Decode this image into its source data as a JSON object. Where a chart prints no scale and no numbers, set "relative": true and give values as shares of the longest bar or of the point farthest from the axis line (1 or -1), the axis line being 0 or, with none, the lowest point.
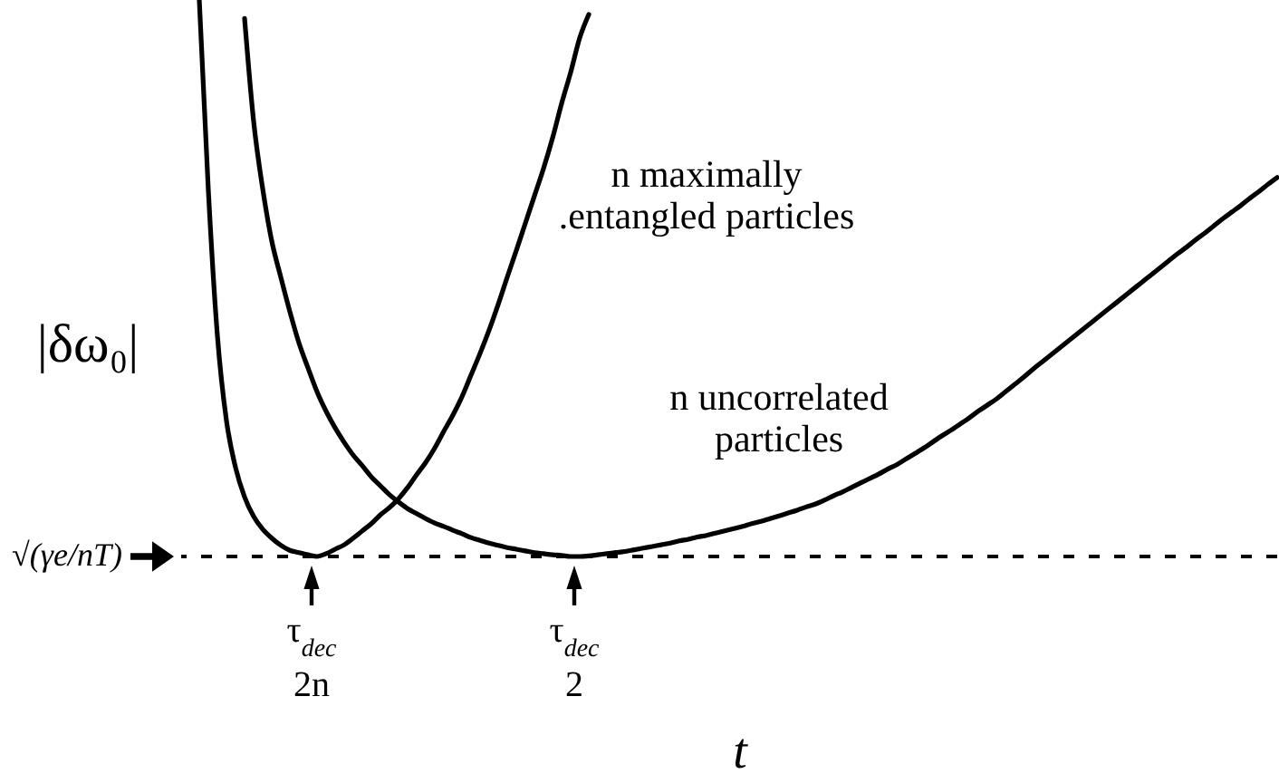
{
  "chart_data": {
    "type": "line",
    "relative": true,
    "xlabel": "t",
    "ylabel": "|δω₀|",
    "categories": [
      null,
      null,
      null,
      null,
      null,
      null,
      null,
      null,
      null,
      null,
      null,
      null,
      null,
      null,
      null,
      null,
      null,
      null,
      null,
      null,
      null,
      null,
      null,
      null,
      null,
      null,
      null,
      null,
      null,
      null,
      null,
      null,
      null,
      null,
      null,
      null,
      null,
      null,
      null,
      null,
      null,
      null,
      null,
      null,
      null,
      null,
      null,
      null,
      null,
      null,
      null,
      null,
      null,
      null,
      null,
      null,
      null,
      null,
      null,
      null,
      null,
      null,
      null,
      null,
      null,
      null,
      null,
      null,
      null,
      null,
      null,
      null,
      null,
      null,
      null,
      null,
      null,
      null,
      null,
      null,
      null,
      null,
      null,
      null,
      null,
      null,
      null,
      null,
      null,
      null,
      null,
      null,
      null,
      null,
      null,
      null,
      null,
      null,
      null,
      null,
      null,
      null,
      null,
      null,
      null,
      null,
      null,
      null,
      null,
      null,
      null,
      null,
      null,
      null,
      null,
      null,
      null,
      null,
      null,
      null,
      null,
      null
    ],
    "series": [
      {
        "name": "n maximally .entangled particles",
        "color": "#000000",
        "values": [
          null,
          null,
          1,
          0.658,
          0.397,
          0.244,
          0.16,
          0.107,
          0.072,
          0.049,
          0.033,
          0.02,
          0.011,
          0.007,
          0.003,
          0,
          0.005,
          0.013,
          0.021,
          0.033,
          0.046,
          0.059,
          0.075,
          0.088,
          0.104,
          0.124,
          0.147,
          0.169,
          0.195,
          0.225,
          0.254,
          0.287,
          0.326,
          0.365,
          0.407,
          0.453,
          0.502,
          0.55,
          0.599,
          0.648,
          0.697,
          0.752,
          0.814,
          0.87,
          0.932,
          0.974,
          null,
          null,
          null,
          null,
          null,
          null,
          null,
          null,
          null,
          null,
          null,
          null,
          null,
          null,
          null,
          null,
          null,
          null,
          null,
          null,
          null,
          null,
          null,
          null,
          null,
          null,
          null,
          null,
          null,
          null,
          null,
          null,
          null,
          null,
          null,
          null,
          null,
          null,
          null,
          null,
          null,
          null,
          null,
          null,
          null,
          null,
          null,
          null,
          null,
          null,
          null,
          null,
          null,
          null,
          null,
          null,
          null,
          null,
          null,
          null,
          null,
          null,
          null,
          null,
          null,
          null,
          null,
          null,
          null,
          null,
          null,
          null,
          null,
          null,
          null,
          null
        ]
      },
      {
        "name": "n uncorrelated particles",
        "color": "#000000",
        "values": [
          null,
          null,
          null,
          null,
          null,
          null,
          null,
          0.967,
          0.782,
          0.661,
          0.567,
          0.502,
          0.44,
          0.384,
          0.339,
          0.296,
          0.261,
          0.231,
          0.205,
          0.182,
          0.163,
          0.143,
          0.127,
          0.111,
          0.098,
          0.086,
          0.077,
          0.068,
          0.06,
          0.054,
          0.047,
          0.041,
          0.034,
          0.029,
          0.024,
          0.02,
          0.016,
          0.013,
          0.01,
          0.007,
          0.005,
          0.003,
          0.002,
          0,
          0,
          0.001,
          0.003,
          0.005,
          0.007,
          0.009,
          0.012,
          0.015,
          0.018,
          0.021,
          0.024,
          0.028,
          0.031,
          0.035,
          0.038,
          0.042,
          0.046,
          0.05,
          0.054,
          0.059,
          0.063,
          0.068,
          0.073,
          0.078,
          0.083,
          0.089,
          0.094,
          0.101,
          0.109,
          0.116,
          0.124,
          0.132,
          0.14,
          0.148,
          0.157,
          0.165,
          0.175,
          0.185,
          0.195,
          0.206,
          0.217,
          0.227,
          0.238,
          0.249,
          0.261,
          0.272,
          0.283,
          0.296,
          0.309,
          0.322,
          0.336,
          0.349,
          0.362,
          0.375,
          0.388,
          0.401,
          0.414,
          0.427,
          0.44,
          0.453,
          0.466,
          0.479,
          0.492,
          0.505,
          0.518,
          0.531,
          0.544,
          0.556,
          0.569,
          0.581,
          0.594,
          0.607,
          0.619,
          0.631,
          0.644,
          0.656,
          0.669,
          0.681
        ]
      }
    ],
    "ref_lines": [
      {
        "axis": "y",
        "value": 0,
        "label": "√(γe/nT)",
        "line_style": "dashed",
        "color": "#000000"
      }
    ],
    "annotations": [
      {
        "text": "τ$_{dec}$\n2n",
        "y": 0
      },
      {
        "text": "τ$_{dec}$\n2",
        "y": 0
      }
    ]
  }
}
